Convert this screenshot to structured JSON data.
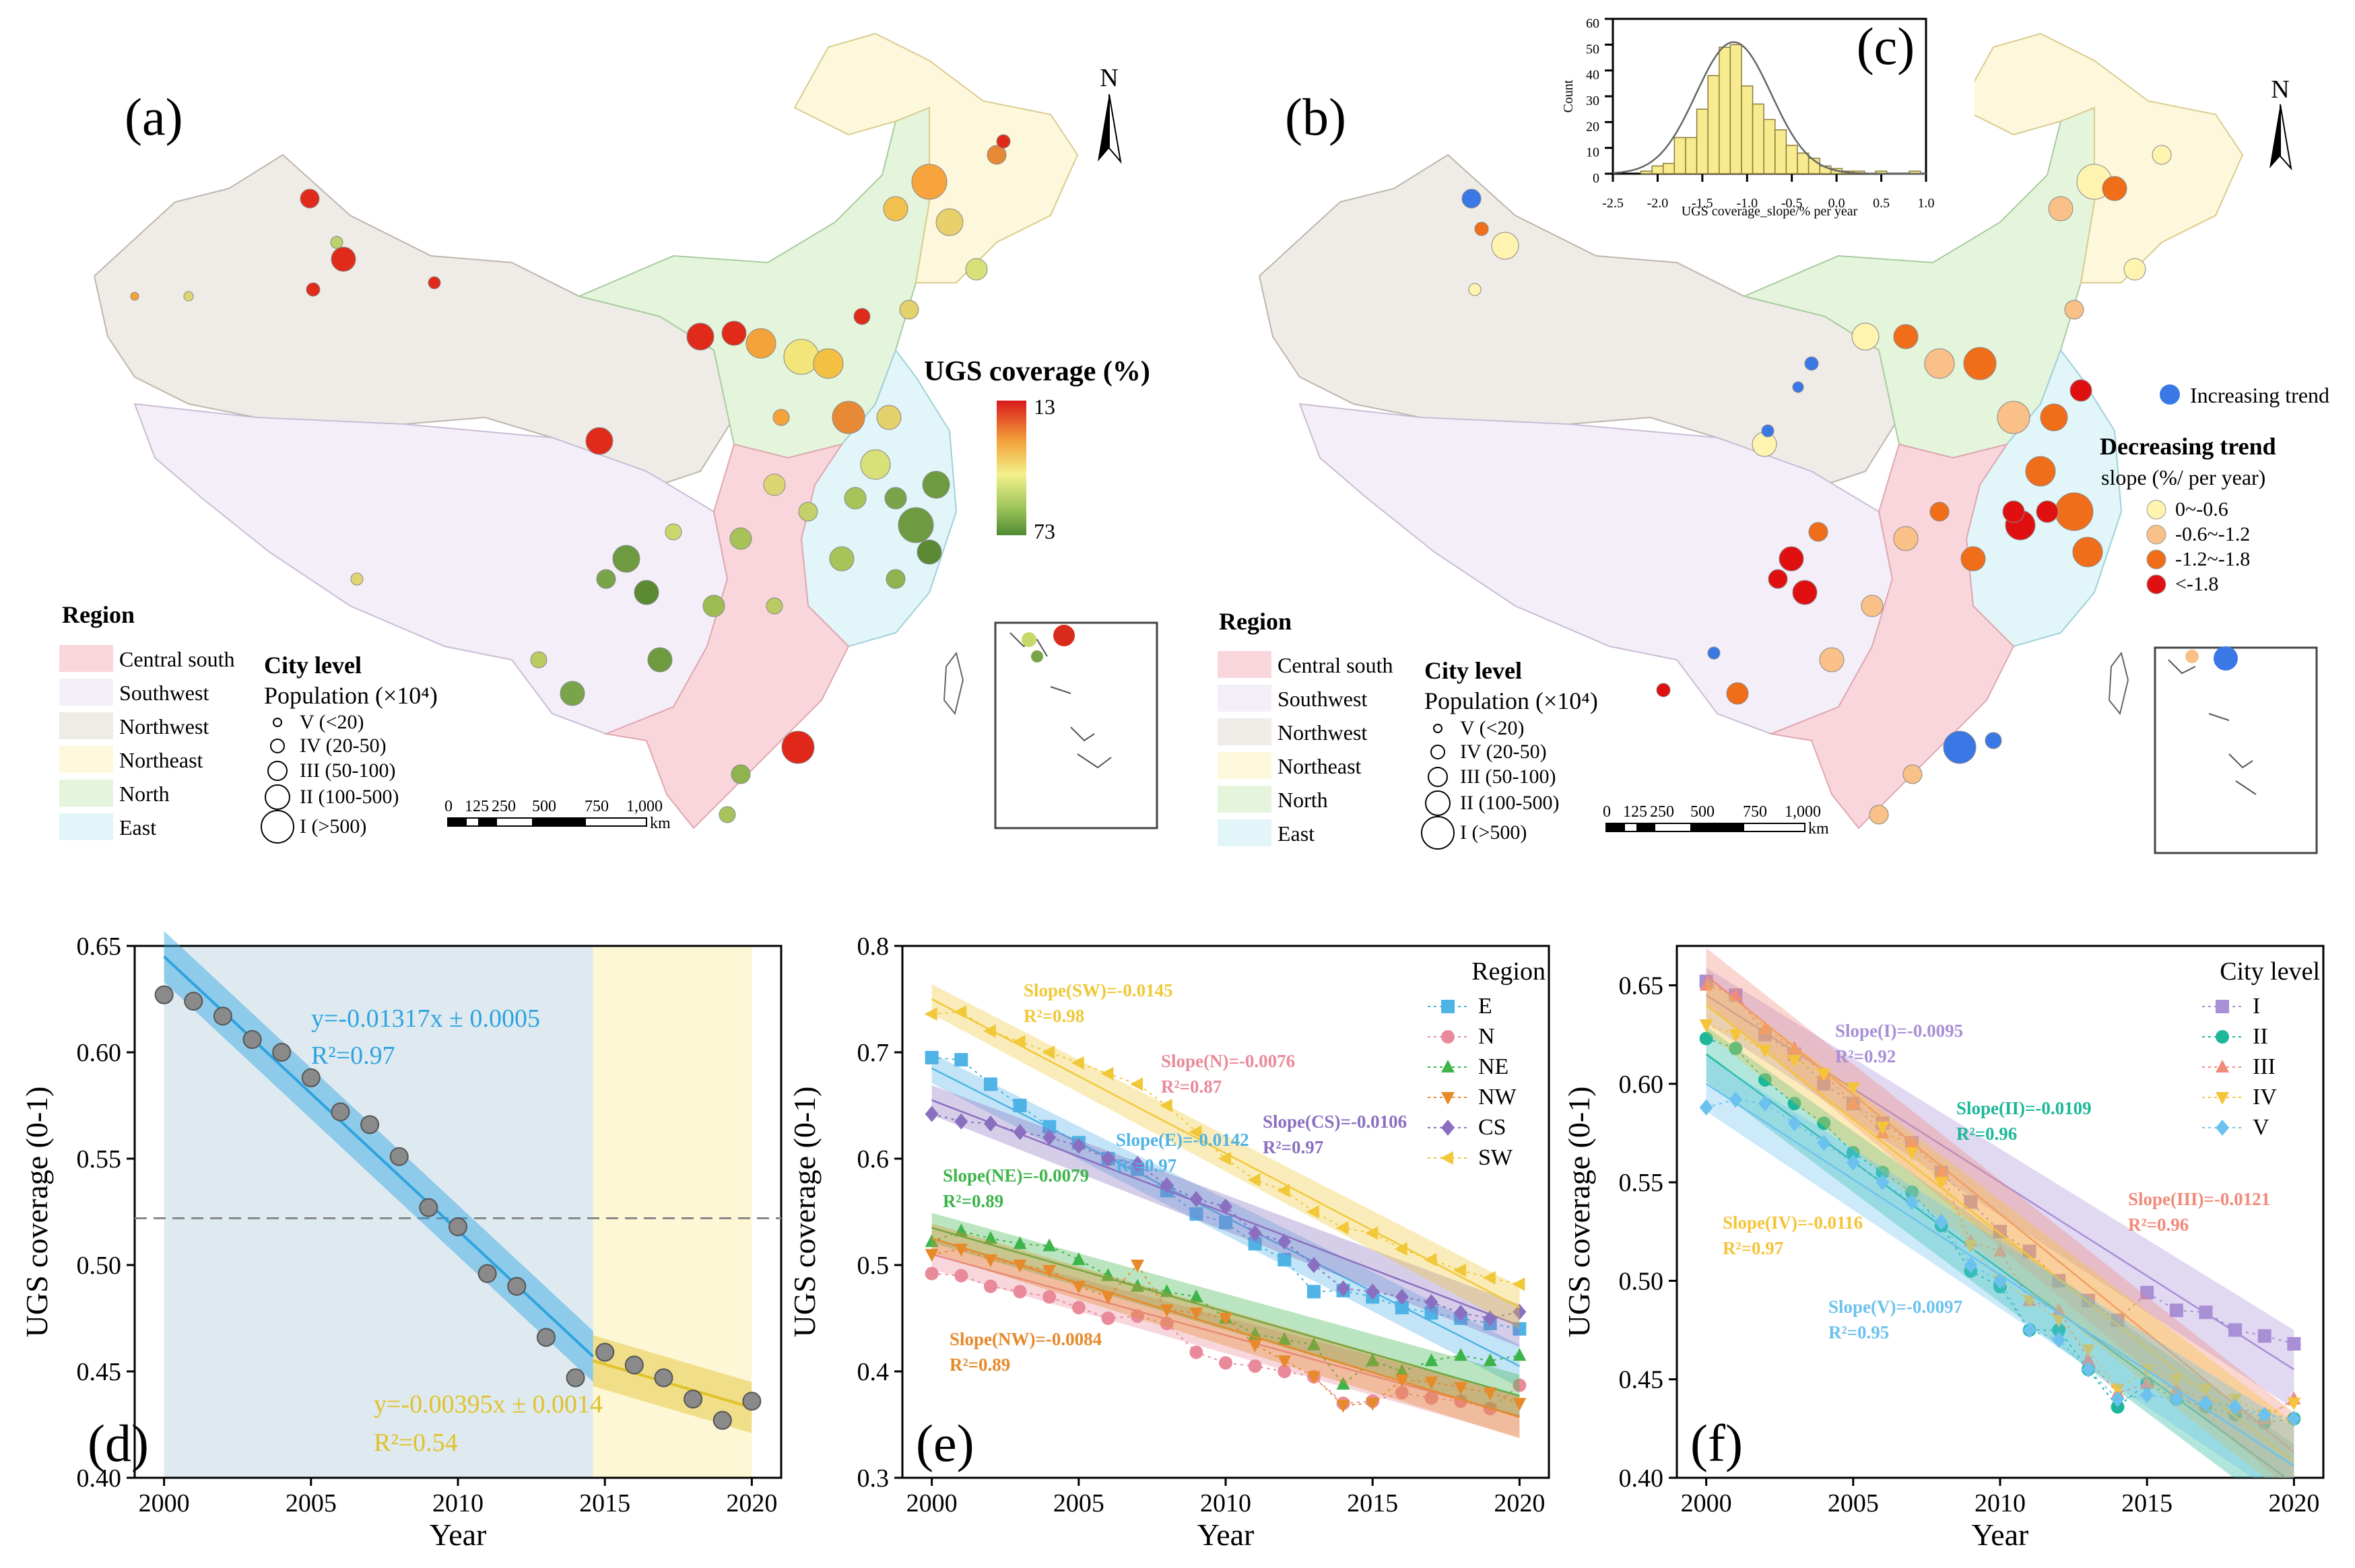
{
  "colors": {
    "central_south": "#f9d6dc",
    "southwest": "#f4eef8",
    "northwest": "#efebe6",
    "northeast": "#fdf8dc",
    "north": "#e4f5dc",
    "east": "#e2f5f8",
    "E": "#4fb3e6",
    "N": "#e98a9a",
    "NE": "#3db54a",
    "NW": "#e68a2a",
    "CS": "#8a6fc0",
    "SW": "#f0c838",
    "I": "#a88fd6",
    "II": "#1db89a",
    "III": "#f08a7a",
    "IV": "#f5c43a",
    "V": "#6cc2ee",
    "increasing": "#3a78e6",
    "slope_c1": "#fff3b0",
    "slope_c2": "#f9c087",
    "slope_c3": "#f06e1a",
    "slope_c4": "#e01010"
  },
  "panel_a": {
    "label": "(a)",
    "north": "N",
    "legend_title": "UGS coverage (%)",
    "color_min": "13",
    "color_max": "73",
    "region_title": "Region",
    "regions": [
      "Central south",
      "Southwest",
      "Northwest",
      "Northeast",
      "North",
      "East"
    ],
    "city_level_title": "City level",
    "population_label": "Population (×10⁴)",
    "city_levels": [
      "V (<20)",
      "IV (20-50)",
      "III (50-100)",
      "II (100-500)",
      "I (>500)"
    ],
    "scale_ticks": [
      "0",
      "125",
      "250",
      "500",
      "750",
      "1,000"
    ],
    "scale_unit": "km"
  },
  "panel_b": {
    "label": "(b)",
    "north": "N",
    "increasing_label": "Increasing trend",
    "decreasing_title": "Decreasing trend",
    "slope_subtitle": "slope (%/ per year)",
    "slope_classes": [
      "0~-0.6",
      "-0.6~-1.2",
      "-1.2~-1.8",
      "<-1.8"
    ],
    "region_title": "Region",
    "regions": [
      "Central south",
      "Southwest",
      "Northwest",
      "Northeast",
      "North",
      "East"
    ],
    "city_level_title": "City level",
    "population_label": "Population (×10⁴)",
    "city_levels": [
      "V (<20)",
      "IV (20-50)",
      "III (50-100)",
      "II (100-500)",
      "I (>500)"
    ],
    "scale_ticks": [
      "0",
      "125",
      "250",
      "500",
      "750",
      "1,000"
    ],
    "scale_unit": "km"
  },
  "chart_data": [
    {
      "panel": "(c)",
      "type": "bar",
      "title": "",
      "xlabel": "UGS coverage_slope/% per year",
      "ylabel": "Count",
      "x_ticks": [
        "-2.5",
        "-2.0",
        "-1.5",
        "-1.0",
        "-0.5",
        "0.0",
        "0.5",
        "1.0"
      ],
      "y_ticks": [
        "0",
        "10",
        "20",
        "30",
        "40",
        "50",
        "60"
      ],
      "xlim": [
        -2.5,
        1.0
      ],
      "ylim": [
        0,
        60
      ],
      "bin_starts": [
        -2.25,
        -2.0,
        -1.75,
        -1.5,
        -1.25,
        -1.0,
        -0.75,
        -0.5,
        -0.25,
        0.0,
        0.25,
        0.5,
        0.75
      ],
      "bin_width": 0.125,
      "counts": [
        1,
        3,
        4,
        14,
        14,
        25,
        38,
        49,
        50,
        34,
        27,
        21,
        17,
        11,
        8,
        6,
        3,
        2,
        1,
        1,
        1,
        1
      ],
      "counts_x": [
        -2.125,
        -2.0,
        -1.875,
        -1.75,
        -1.625,
        -1.5,
        -1.375,
        -1.25,
        -1.125,
        -1.0,
        -0.875,
        -0.75,
        -0.625,
        -0.5,
        -0.375,
        -0.25,
        -0.125,
        0.0,
        0.125,
        0.25,
        0.5,
        0.875
      ],
      "normal_fit": {
        "mean": -1.15,
        "sd": 0.42,
        "peak": 51
      }
    },
    {
      "panel": "(d)",
      "type": "scatter",
      "xlabel": "Year",
      "ylabel": "UGS coverage (0-1)",
      "xlim": [
        1999,
        2021
      ],
      "ylim": [
        0.4,
        0.65
      ],
      "x_ticks": [
        "2000",
        "2005",
        "2010",
        "2015",
        "2020"
      ],
      "y_ticks": [
        "0.40",
        "0.45",
        "0.50",
        "0.55",
        "0.60",
        "0.65"
      ],
      "x": [
        2000,
        2001,
        2002,
        2003,
        2004,
        2005,
        2006,
        2007,
        2008,
        2009,
        2010,
        2011,
        2012,
        2013,
        2014,
        2015,
        2016,
        2017,
        2018,
        2019,
        2020
      ],
      "y": [
        0.627,
        0.624,
        0.617,
        0.606,
        0.6,
        0.588,
        0.572,
        0.566,
        0.551,
        0.527,
        0.518,
        0.496,
        0.49,
        0.466,
        0.447,
        0.459,
        0.453,
        0.447,
        0.437,
        0.427,
        0.436
      ],
      "threshold": 0.522,
      "fits": [
        {
          "name": "2000-2014",
          "x0": 2000,
          "y0": 0.645,
          "x1": 2014.6,
          "y1": 0.457,
          "eq": "y=-0.01317x ± 0.0005",
          "r2": "R²=0.97",
          "color": "#2da3e0"
        },
        {
          "name": "2015-2020",
          "x0": 2014.6,
          "y0": 0.455,
          "x1": 2020,
          "y1": 0.433,
          "eq": "y=-0.00395x ± 0.0014",
          "r2": "R²=0.54",
          "color": "#e0c22a"
        }
      ]
    },
    {
      "panel": "(e)",
      "type": "scatter",
      "xlabel": "Year",
      "ylabel": "UGS coverage (0-1)",
      "xlim": [
        1999,
        2021
      ],
      "ylim": [
        0.3,
        0.8
      ],
      "x_ticks": [
        "2000",
        "2005",
        "2010",
        "2015",
        "2020"
      ],
      "y_ticks": [
        "0.3",
        "0.4",
        "0.5",
        "0.6",
        "0.7",
        "0.8"
      ],
      "legend_title": "Region",
      "x": [
        2000,
        2001,
        2002,
        2003,
        2004,
        2005,
        2006,
        2007,
        2008,
        2009,
        2010,
        2011,
        2012,
        2013,
        2014,
        2015,
        2016,
        2017,
        2018,
        2019,
        2020
      ],
      "series": [
        {
          "name": "E",
          "values": [
            0.695,
            0.693,
            0.67,
            0.65,
            0.63,
            0.615,
            0.6,
            0.59,
            0.57,
            0.548,
            0.54,
            0.52,
            0.505,
            0.475,
            0.476,
            0.47,
            0.46,
            0.455,
            0.45,
            0.445,
            0.44
          ],
          "fit": [
            0.685,
            0.405
          ],
          "slope": "Slope(E)=-0.0142",
          "r2": "R²=0.97"
        },
        {
          "name": "N",
          "values": [
            0.492,
            0.49,
            0.48,
            0.475,
            0.47,
            0.46,
            0.45,
            0.452,
            0.445,
            0.418,
            0.408,
            0.405,
            0.4,
            0.395,
            0.37,
            0.372,
            0.38,
            0.375,
            0.372,
            0.365,
            0.387
          ],
          "fit": [
            0.51,
            0.358
          ],
          "slope": "Slope(N)=-0.0076",
          "r2": "R²=0.87"
        },
        {
          "name": "NE",
          "values": [
            0.522,
            0.532,
            0.525,
            0.52,
            0.518,
            0.505,
            0.49,
            0.48,
            0.475,
            0.47,
            0.45,
            0.435,
            0.43,
            0.425,
            0.388,
            0.41,
            0.4,
            0.41,
            0.415,
            0.41,
            0.415
          ],
          "fit": [
            0.535,
            0.377
          ],
          "slope": "Slope(NE)=-0.0079",
          "r2": "R²=0.89"
        },
        {
          "name": "NW",
          "values": [
            0.51,
            0.515,
            0.505,
            0.5,
            0.495,
            0.48,
            0.47,
            0.5,
            0.458,
            0.455,
            0.45,
            0.425,
            0.41,
            0.395,
            0.368,
            0.37,
            0.392,
            0.39,
            0.385,
            0.38,
            0.37
          ],
          "fit": [
            0.525,
            0.357
          ],
          "slope": "Slope(NW)=-0.0084",
          "r2": "R²=0.89"
        },
        {
          "name": "CS",
          "values": [
            0.642,
            0.635,
            0.633,
            0.625,
            0.62,
            0.612,
            0.6,
            0.595,
            0.575,
            0.562,
            0.555,
            0.53,
            0.522,
            0.5,
            0.478,
            0.475,
            0.47,
            0.465,
            0.455,
            0.45,
            0.456
          ],
          "fit": [
            0.655,
            0.443
          ],
          "slope": "Slope(CS)=-0.0106",
          "r2": "R²=0.97"
        },
        {
          "name": "SW",
          "values": [
            0.736,
            0.738,
            0.72,
            0.71,
            0.7,
            0.69,
            0.68,
            0.67,
            0.65,
            0.625,
            0.6,
            0.58,
            0.57,
            0.55,
            0.535,
            0.53,
            0.515,
            0.505,
            0.495,
            0.488,
            0.482
          ],
          "fit": [
            0.75,
            0.46
          ],
          "slope": "Slope(SW)=-0.0145",
          "r2": "R²=0.98"
        }
      ]
    },
    {
      "panel": "(f)",
      "type": "scatter",
      "xlabel": "Year",
      "ylabel": "UGS coverage (0-1)",
      "xlim": [
        1999,
        2021
      ],
      "ylim": [
        0.4,
        0.67
      ],
      "x_ticks": [
        "2000",
        "2005",
        "2010",
        "2015",
        "2020"
      ],
      "y_ticks": [
        "0.40",
        "0.45",
        "0.50",
        "0.55",
        "0.60",
        "0.65"
      ],
      "legend_title": "City level",
      "x": [
        2000,
        2001,
        2002,
        2003,
        2004,
        2005,
        2006,
        2007,
        2008,
        2009,
        2010,
        2011,
        2012,
        2013,
        2014,
        2015,
        2016,
        2017,
        2018,
        2019,
        2020
      ],
      "series": [
        {
          "name": "I",
          "values": [
            0.652,
            0.645,
            0.625,
            0.615,
            0.6,
            0.59,
            0.58,
            0.57,
            0.555,
            0.54,
            0.525,
            0.515,
            0.5,
            0.49,
            0.48,
            0.494,
            0.485,
            0.484,
            0.475,
            0.472,
            0.468
          ],
          "fit": [
            0.645,
            0.455
          ],
          "slope": "Slope(I)=-0.0095",
          "r2": "R²=0.92"
        },
        {
          "name": "II",
          "values": [
            0.623,
            0.618,
            0.602,
            0.59,
            0.58,
            0.565,
            0.555,
            0.545,
            0.528,
            0.505,
            0.497,
            0.475,
            0.475,
            0.455,
            0.436,
            0.448,
            0.44,
            0.436,
            0.432,
            0.428,
            0.43
          ],
          "fit": [
            0.615,
            0.397
          ],
          "slope": "Slope(II)=-0.0109",
          "r2": "R²=0.96"
        },
        {
          "name": "III",
          "values": [
            0.65,
            0.645,
            0.628,
            0.618,
            0.605,
            0.59,
            0.575,
            0.57,
            0.555,
            0.52,
            0.515,
            0.49,
            0.485,
            0.46,
            0.443,
            0.448,
            0.445,
            0.44,
            0.436,
            0.43,
            0.44
          ],
          "fit": [
            0.655,
            0.413
          ],
          "slope": "Slope(III)=-0.0121",
          "r2": "R²=0.96"
        },
        {
          "name": "IV",
          "values": [
            0.63,
            0.625,
            0.617,
            0.612,
            0.605,
            0.598,
            0.578,
            0.565,
            0.55,
            0.518,
            0.5,
            0.49,
            0.48,
            0.465,
            0.445,
            0.455,
            0.45,
            0.445,
            0.44,
            0.432,
            0.438
          ],
          "fit": [
            0.64,
            0.408
          ],
          "slope": "Slope(IV)=-0.0116",
          "r2": "R²=0.97"
        },
        {
          "name": "V",
          "values": [
            0.588,
            0.592,
            0.59,
            0.58,
            0.57,
            0.56,
            0.55,
            0.54,
            0.53,
            0.508,
            0.5,
            0.475,
            0.47,
            0.455,
            0.44,
            0.442,
            0.44,
            0.438,
            0.436,
            0.432,
            0.43
          ],
          "fit": [
            0.6,
            0.406
          ],
          "slope": "Slope(V)=-0.0097",
          "r2": "R²=0.95"
        }
      ]
    }
  ]
}
